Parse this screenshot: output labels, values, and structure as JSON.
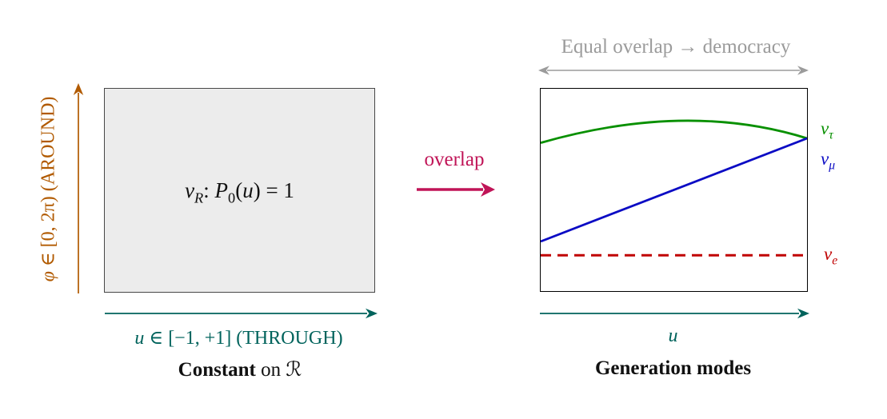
{
  "colors": {
    "orange": "#b15a00",
    "teal": "#00635c",
    "magenta": "#c01457",
    "gray": "#9b9b9b",
    "green": "#089000",
    "blue": "#0b0bc4",
    "red": "#c00000",
    "black": "#000000",
    "box_fill": "#ececec",
    "box_border": "#474747"
  },
  "left_panel": {
    "phi_axis": {
      "var": "φ",
      "set": " ∈ [0, 2π) ",
      "caps": "(AROUND)"
    },
    "u_axis": {
      "var": "u",
      "set": " ∈ [−1, +1] ",
      "caps": "(THROUGH)"
    },
    "formula": {
      "nu": "ν",
      "nu_sub": "R",
      "colon": ": ",
      "p": "P",
      "p_sub": "0",
      "open": "(",
      "var": "u",
      "rest": ") = 1"
    },
    "caption": {
      "bold": "Constant",
      "mid": " on ",
      "calR": "ℛ"
    }
  },
  "connector": {
    "label": "overlap"
  },
  "right_panel": {
    "top_label": "Equal overlap → democracy",
    "curves": {
      "tau": {
        "color": "green",
        "type": "quadratic",
        "points": [
          [
            0,
            0.267
          ],
          [
            0.55,
            0.06
          ],
          [
            1,
            0.245
          ]
        ],
        "dashed": false,
        "label": {
          "nu": "ν",
          "sub": "τ"
        }
      },
      "mu": {
        "color": "blue",
        "type": "line",
        "points": [
          [
            0,
            0.755
          ],
          [
            1,
            0.245
          ]
        ],
        "dashed": false,
        "label": {
          "nu": "ν",
          "sub": "μ"
        }
      },
      "e": {
        "color": "red",
        "type": "line",
        "points": [
          [
            0,
            0.823
          ],
          [
            1,
            0.823
          ]
        ],
        "dashed": true,
        "label": {
          "nu": "ν",
          "sub": "e"
        }
      }
    },
    "x_label": "u",
    "caption": "Generation modes"
  }
}
